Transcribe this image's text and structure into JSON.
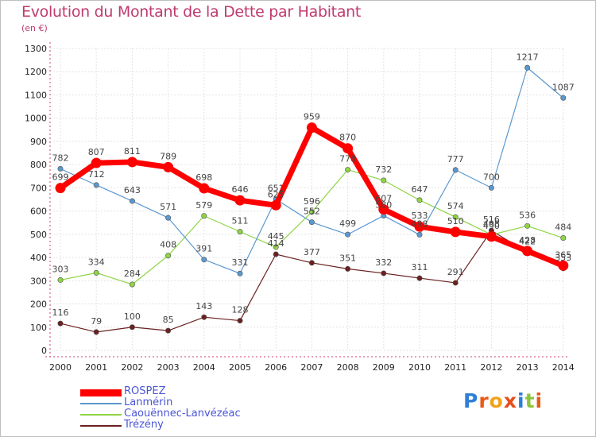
{
  "title": "Evolution du Montant de la Dette par Habitant",
  "unit": "(en €)",
  "logo": {
    "text": "Proxiti",
    "letters": [
      "P",
      "r",
      "o",
      "x",
      "i",
      "t",
      "i"
    ],
    "colors": [
      "#2f7fd6",
      "#e85a1a",
      "#f2a21c",
      "#e84c1a",
      "#2f7fd6",
      "#8cc63e",
      "#e85a1a"
    ]
  },
  "chart_data": {
    "type": "line",
    "x": [
      "2000",
      "2001",
      "2002",
      "2003",
      "2004",
      "2005",
      "2006",
      "2007",
      "2008",
      "2009",
      "2010",
      "2011",
      "2012",
      "2013",
      "2014"
    ],
    "ylim": [
      0,
      1300
    ],
    "yticks": [
      0,
      100,
      200,
      300,
      400,
      500,
      600,
      700,
      800,
      900,
      1000,
      1100,
      1200,
      1300
    ],
    "grid": true,
    "legend_position": "bottom-left",
    "series": [
      {
        "name": "ROSPEZ",
        "color": "#ff0000",
        "values": [
          699,
          807,
          811,
          789,
          698,
          646,
          625,
          959,
          870,
          607,
          533,
          510,
          490,
          428,
          365
        ],
        "labels": [
          "699",
          "807",
          "811",
          "789",
          "698",
          "646",
          "625",
          "959",
          "870",
          "607",
          "533",
          "510",
          "490",
          "428",
          "365"
        ]
      },
      {
        "name": "Lanmérin",
        "color": "#5b98cf",
        "values": [
          782,
          712,
          643,
          571,
          391,
          331,
          651,
          552,
          499,
          580,
          498,
          777,
          700,
          1217,
          1087
        ],
        "labels": [
          "782",
          "712",
          "643",
          "571",
          "391",
          "331",
          "651",
          "552",
          "499",
          "580",
          "498",
          "777",
          "700",
          "1217",
          "1087"
        ]
      },
      {
        "name": "Caouënnec-Lanvézéac",
        "color": "#8fd444",
        "values": [
          303,
          334,
          284,
          408,
          579,
          511,
          445,
          596,
          778,
          732,
          647,
          574,
          498,
          536,
          484
        ],
        "labels": [
          "303",
          "334",
          "284",
          "408",
          "579",
          "511",
          "445",
          "596",
          "778",
          "732",
          "647",
          "574",
          "498",
          "536",
          "484"
        ]
      },
      {
        "name": "Trézény",
        "color": "#6b2020",
        "values": [
          116,
          79,
          100,
          85,
          143,
          128,
          414,
          377,
          351,
          332,
          311,
          291,
          516,
          422,
          353
        ],
        "labels": [
          "116",
          "79",
          "100",
          "85",
          "143",
          "128",
          "414",
          "377",
          "351",
          "332",
          "311",
          "291",
          "516",
          "422",
          "353"
        ]
      }
    ]
  }
}
